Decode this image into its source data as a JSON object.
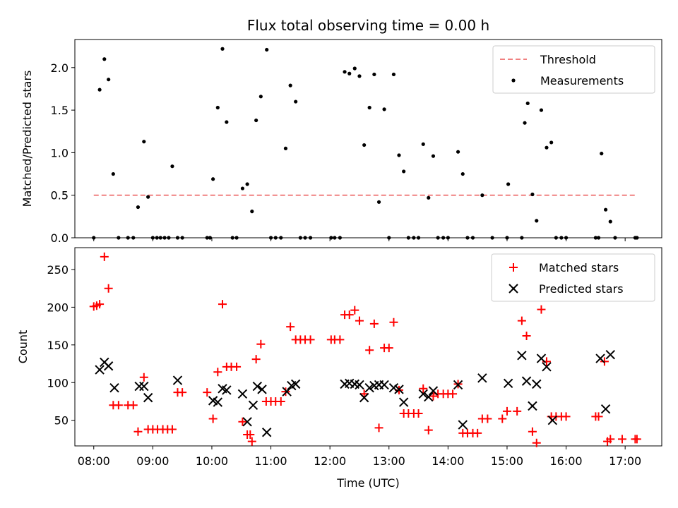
{
  "chart_data": [
    {
      "type": "line",
      "title": "Flux total observing time = 0.00 h",
      "xlabel": "",
      "ylabel": "Matched/Predicted stars",
      "xlim": [
        7.68,
        17.62
      ],
      "ylim": [
        0.0,
        2.33
      ],
      "yticks": [
        0.0,
        0.5,
        1.0,
        1.5,
        2.0
      ],
      "ytick_labels": [
        "0.0",
        "0.5",
        "1.0",
        "1.5",
        "2.0"
      ],
      "xticks": [
        8,
        9,
        10,
        11,
        12,
        13,
        14,
        15,
        16,
        17
      ],
      "legend": [
        "Threshold",
        "Measurements"
      ],
      "legend_location": "top-right",
      "colors": {
        "threshold": "#f08080",
        "measurements": "#000000"
      },
      "series": [
        {
          "name": "Threshold",
          "style": "dashed-line",
          "x": [
            8.0,
            17.2
          ],
          "y": [
            0.5,
            0.5
          ]
        },
        {
          "name": "Measurements",
          "style": "dots",
          "x": [
            8.0,
            8.1,
            8.18,
            8.25,
            8.33,
            8.42,
            8.58,
            8.67,
            8.75,
            8.85,
            8.92,
            9.0,
            9.07,
            9.13,
            9.2,
            9.27,
            9.33,
            9.42,
            9.5,
            9.92,
            9.97,
            10.02,
            10.1,
            10.18,
            10.25,
            10.35,
            10.42,
            10.52,
            10.6,
            10.68,
            10.75,
            10.83,
            10.93,
            11.0,
            11.08,
            11.17,
            11.25,
            11.33,
            11.42,
            11.5,
            11.58,
            11.67,
            12.02,
            12.08,
            12.17,
            12.25,
            12.33,
            12.42,
            12.5,
            12.58,
            12.67,
            12.75,
            12.83,
            12.92,
            13.0,
            13.08,
            13.17,
            13.25,
            13.33,
            13.42,
            13.5,
            13.58,
            13.67,
            13.75,
            13.83,
            13.92,
            14.0,
            14.17,
            14.25,
            14.33,
            14.42,
            14.58,
            14.75,
            15.0,
            15.02,
            15.25,
            15.3,
            15.35,
            15.43,
            15.5,
            15.58,
            15.67,
            15.75,
            15.83,
            15.92,
            16.0,
            16.5,
            16.55,
            16.6,
            16.67,
            16.75,
            16.83,
            17.17,
            17.2
          ],
          "y": [
            0.0,
            1.74,
            2.1,
            1.86,
            0.75,
            0.0,
            0.0,
            0.0,
            0.36,
            1.13,
            0.48,
            0.0,
            0.0,
            0.0,
            0.0,
            0.0,
            0.84,
            0.0,
            0.0,
            0.0,
            0.0,
            0.69,
            1.53,
            2.22,
            1.36,
            0.0,
            0.0,
            0.58,
            0.63,
            0.31,
            1.38,
            1.66,
            2.21,
            0.0,
            0.0,
            0.0,
            1.05,
            1.79,
            1.6,
            0.0,
            0.0,
            0.0,
            0.0,
            0.0,
            0.0,
            1.95,
            1.93,
            1.99,
            1.9,
            1.09,
            1.53,
            1.92,
            0.42,
            1.51,
            0.0,
            1.92,
            0.97,
            0.78,
            0.0,
            0.0,
            0.0,
            1.1,
            0.47,
            0.96,
            0.0,
            0.0,
            0.0,
            1.01,
            0.75,
            0.0,
            0.0,
            0.5,
            0.0,
            0.0,
            0.63,
            0.0,
            1.35,
            1.58,
            0.51,
            0.2,
            1.5,
            1.06,
            1.12,
            0.0,
            0.0,
            0.0,
            0.0,
            0.0,
            0.99,
            0.33,
            0.19,
            0.0,
            0.0,
            0.0
          ]
        }
      ]
    },
    {
      "type": "scatter",
      "title": "",
      "xlabel": "Time (UTC)",
      "ylabel": "Count",
      "xlim": [
        7.68,
        17.62
      ],
      "ylim": [
        16.0,
        279.0
      ],
      "yticks": [
        50,
        100,
        150,
        200,
        250
      ],
      "ytick_labels": [
        "50",
        "100",
        "150",
        "200",
        "250"
      ],
      "xticks": [
        8,
        9,
        10,
        11,
        12,
        13,
        14,
        15,
        16,
        17
      ],
      "xtick_labels": [
        "08:00",
        "09:00",
        "10:00",
        "11:00",
        "12:00",
        "13:00",
        "14:00",
        "15:00",
        "16:00",
        "17:00"
      ],
      "legend": [
        "Matched stars",
        "Predicted stars"
      ],
      "legend_location": "top-right",
      "colors": {
        "matched": "#ff0000",
        "predicted": "#000000"
      },
      "series": [
        {
          "name": "Matched stars",
          "marker": "plus",
          "x": [
            8.0,
            8.05,
            8.1,
            8.18,
            8.25,
            8.33,
            8.42,
            8.58,
            8.67,
            8.75,
            8.85,
            8.92,
            9.0,
            9.08,
            9.17,
            9.25,
            9.33,
            9.42,
            9.5,
            9.92,
            10.02,
            10.1,
            10.18,
            10.25,
            10.33,
            10.42,
            10.52,
            10.6,
            10.65,
            10.68,
            10.75,
            10.83,
            10.92,
            11.0,
            11.08,
            11.17,
            11.25,
            11.33,
            11.42,
            11.5,
            11.58,
            11.67,
            12.02,
            12.08,
            12.17,
            12.25,
            12.33,
            12.42,
            12.5,
            12.58,
            12.67,
            12.75,
            12.83,
            12.92,
            13.0,
            13.08,
            13.17,
            13.25,
            13.33,
            13.42,
            13.5,
            13.58,
            13.67,
            13.75,
            13.83,
            13.92,
            14.0,
            14.08,
            14.17,
            14.25,
            14.33,
            14.42,
            14.5,
            14.58,
            14.67,
            14.92,
            15.0,
            15.17,
            15.25,
            15.33,
            15.43,
            15.5,
            15.58,
            15.67,
            15.75,
            15.83,
            15.92,
            16.0,
            16.5,
            16.55,
            16.65,
            16.7,
            16.75,
            16.95,
            17.17,
            17.2
          ],
          "y": [
            201,
            202,
            204,
            267,
            225,
            70,
            70,
            70,
            70,
            35,
            107,
            38,
            38,
            38,
            38,
            38,
            38,
            87,
            87,
            87,
            52,
            114,
            204,
            121,
            121,
            121,
            48,
            31,
            31,
            22,
            131,
            151,
            75,
            75,
            75,
            75,
            88,
            174,
            157,
            157,
            157,
            157,
            157,
            157,
            157,
            190,
            190,
            196,
            182,
            85,
            143,
            178,
            40,
            146,
            146,
            180,
            90,
            59,
            59,
            59,
            59,
            92,
            37,
            82,
            85,
            85,
            85,
            85,
            98,
            33,
            33,
            33,
            33,
            52,
            52,
            52,
            62,
            62,
            182,
            162,
            35,
            20,
            197,
            128,
            55,
            55,
            55,
            55,
            55,
            55,
            128,
            22,
            25,
            25,
            25,
            25
          ]
        },
        {
          "name": "Predicted stars",
          "marker": "x",
          "x": [
            8.1,
            8.18,
            8.25,
            8.35,
            8.77,
            8.85,
            8.92,
            9.42,
            10.02,
            10.1,
            10.18,
            10.25,
            10.52,
            10.6,
            10.7,
            10.77,
            10.85,
            10.93,
            11.27,
            11.35,
            11.42,
            12.25,
            12.33,
            12.42,
            12.5,
            12.58,
            12.67,
            12.75,
            12.83,
            12.92,
            13.08,
            13.17,
            13.25,
            13.58,
            13.67,
            13.75,
            14.17,
            14.25,
            14.58,
            15.02,
            15.25,
            15.33,
            15.43,
            15.5,
            15.58,
            15.67,
            15.77,
            16.58,
            16.67,
            16.75
          ],
          "y": [
            117,
            127,
            122,
            93,
            95,
            95,
            80,
            103,
            76,
            74,
            92,
            90,
            85,
            48,
            70,
            95,
            91,
            34,
            88,
            96,
            98,
            98,
            99,
            98,
            97,
            80,
            93,
            96,
            97,
            97,
            93,
            91,
            74,
            85,
            81,
            89,
            97,
            44,
            106,
            99,
            136,
            102,
            69,
            98,
            132,
            121,
            50,
            132,
            65,
            137
          ]
        }
      ]
    }
  ]
}
